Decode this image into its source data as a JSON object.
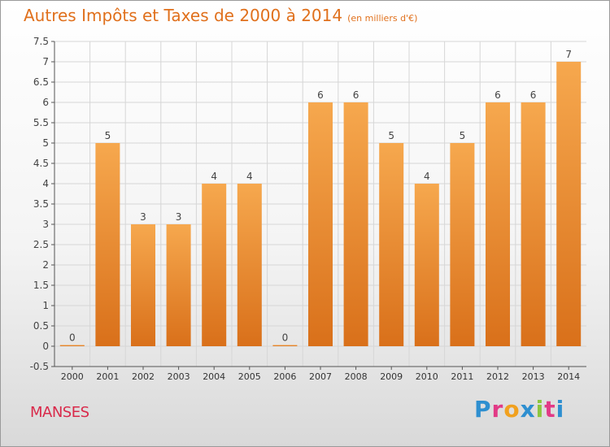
{
  "header": {
    "title": "Autres Impôts et Taxes de 2000 à 2014",
    "unit": "(en milliers d'€)"
  },
  "footer": {
    "commune": "MANSES",
    "logo_letters": [
      "P",
      "r",
      "o",
      "x",
      "i",
      "t",
      "i"
    ],
    "logo_colors": [
      "#2e8fd0",
      "#e23a86",
      "#f1a11f",
      "#2e8fd0",
      "#8cc63f",
      "#e23a86",
      "#2e8fd0"
    ]
  },
  "colors": {
    "bar_light": "#f6a84e",
    "bar_dark": "#d9701a",
    "grid": "#d6d6d6",
    "title": "#e0701c",
    "commune": "#d9294a"
  },
  "chart_data": {
    "type": "bar",
    "title": "Autres Impôts et Taxes de 2000 à 2014",
    "subtitle": "(en milliers d'€)",
    "categories": [
      "2000",
      "2001",
      "2002",
      "2003",
      "2004",
      "2005",
      "2006",
      "2007",
      "2008",
      "2009",
      "2010",
      "2011",
      "2012",
      "2013",
      "2014"
    ],
    "values": [
      0,
      5,
      3,
      3,
      4,
      4,
      0,
      6,
      6,
      5,
      4,
      5,
      6,
      6,
      7
    ],
    "data_labels": [
      "0",
      "5",
      "3",
      "3",
      "4",
      "4",
      "0",
      "6",
      "6",
      "5",
      "4",
      "5",
      "6",
      "6",
      "7"
    ],
    "yticks": [
      "-0.5",
      "0",
      "0.5",
      "1",
      "1.5",
      "2",
      "2.5",
      "3",
      "3.5",
      "4",
      "4.5",
      "5",
      "5.5",
      "6",
      "6.5",
      "7",
      "7.5"
    ],
    "ylim": [
      -0.5,
      7.5
    ],
    "grid": true,
    "legend": "none"
  }
}
